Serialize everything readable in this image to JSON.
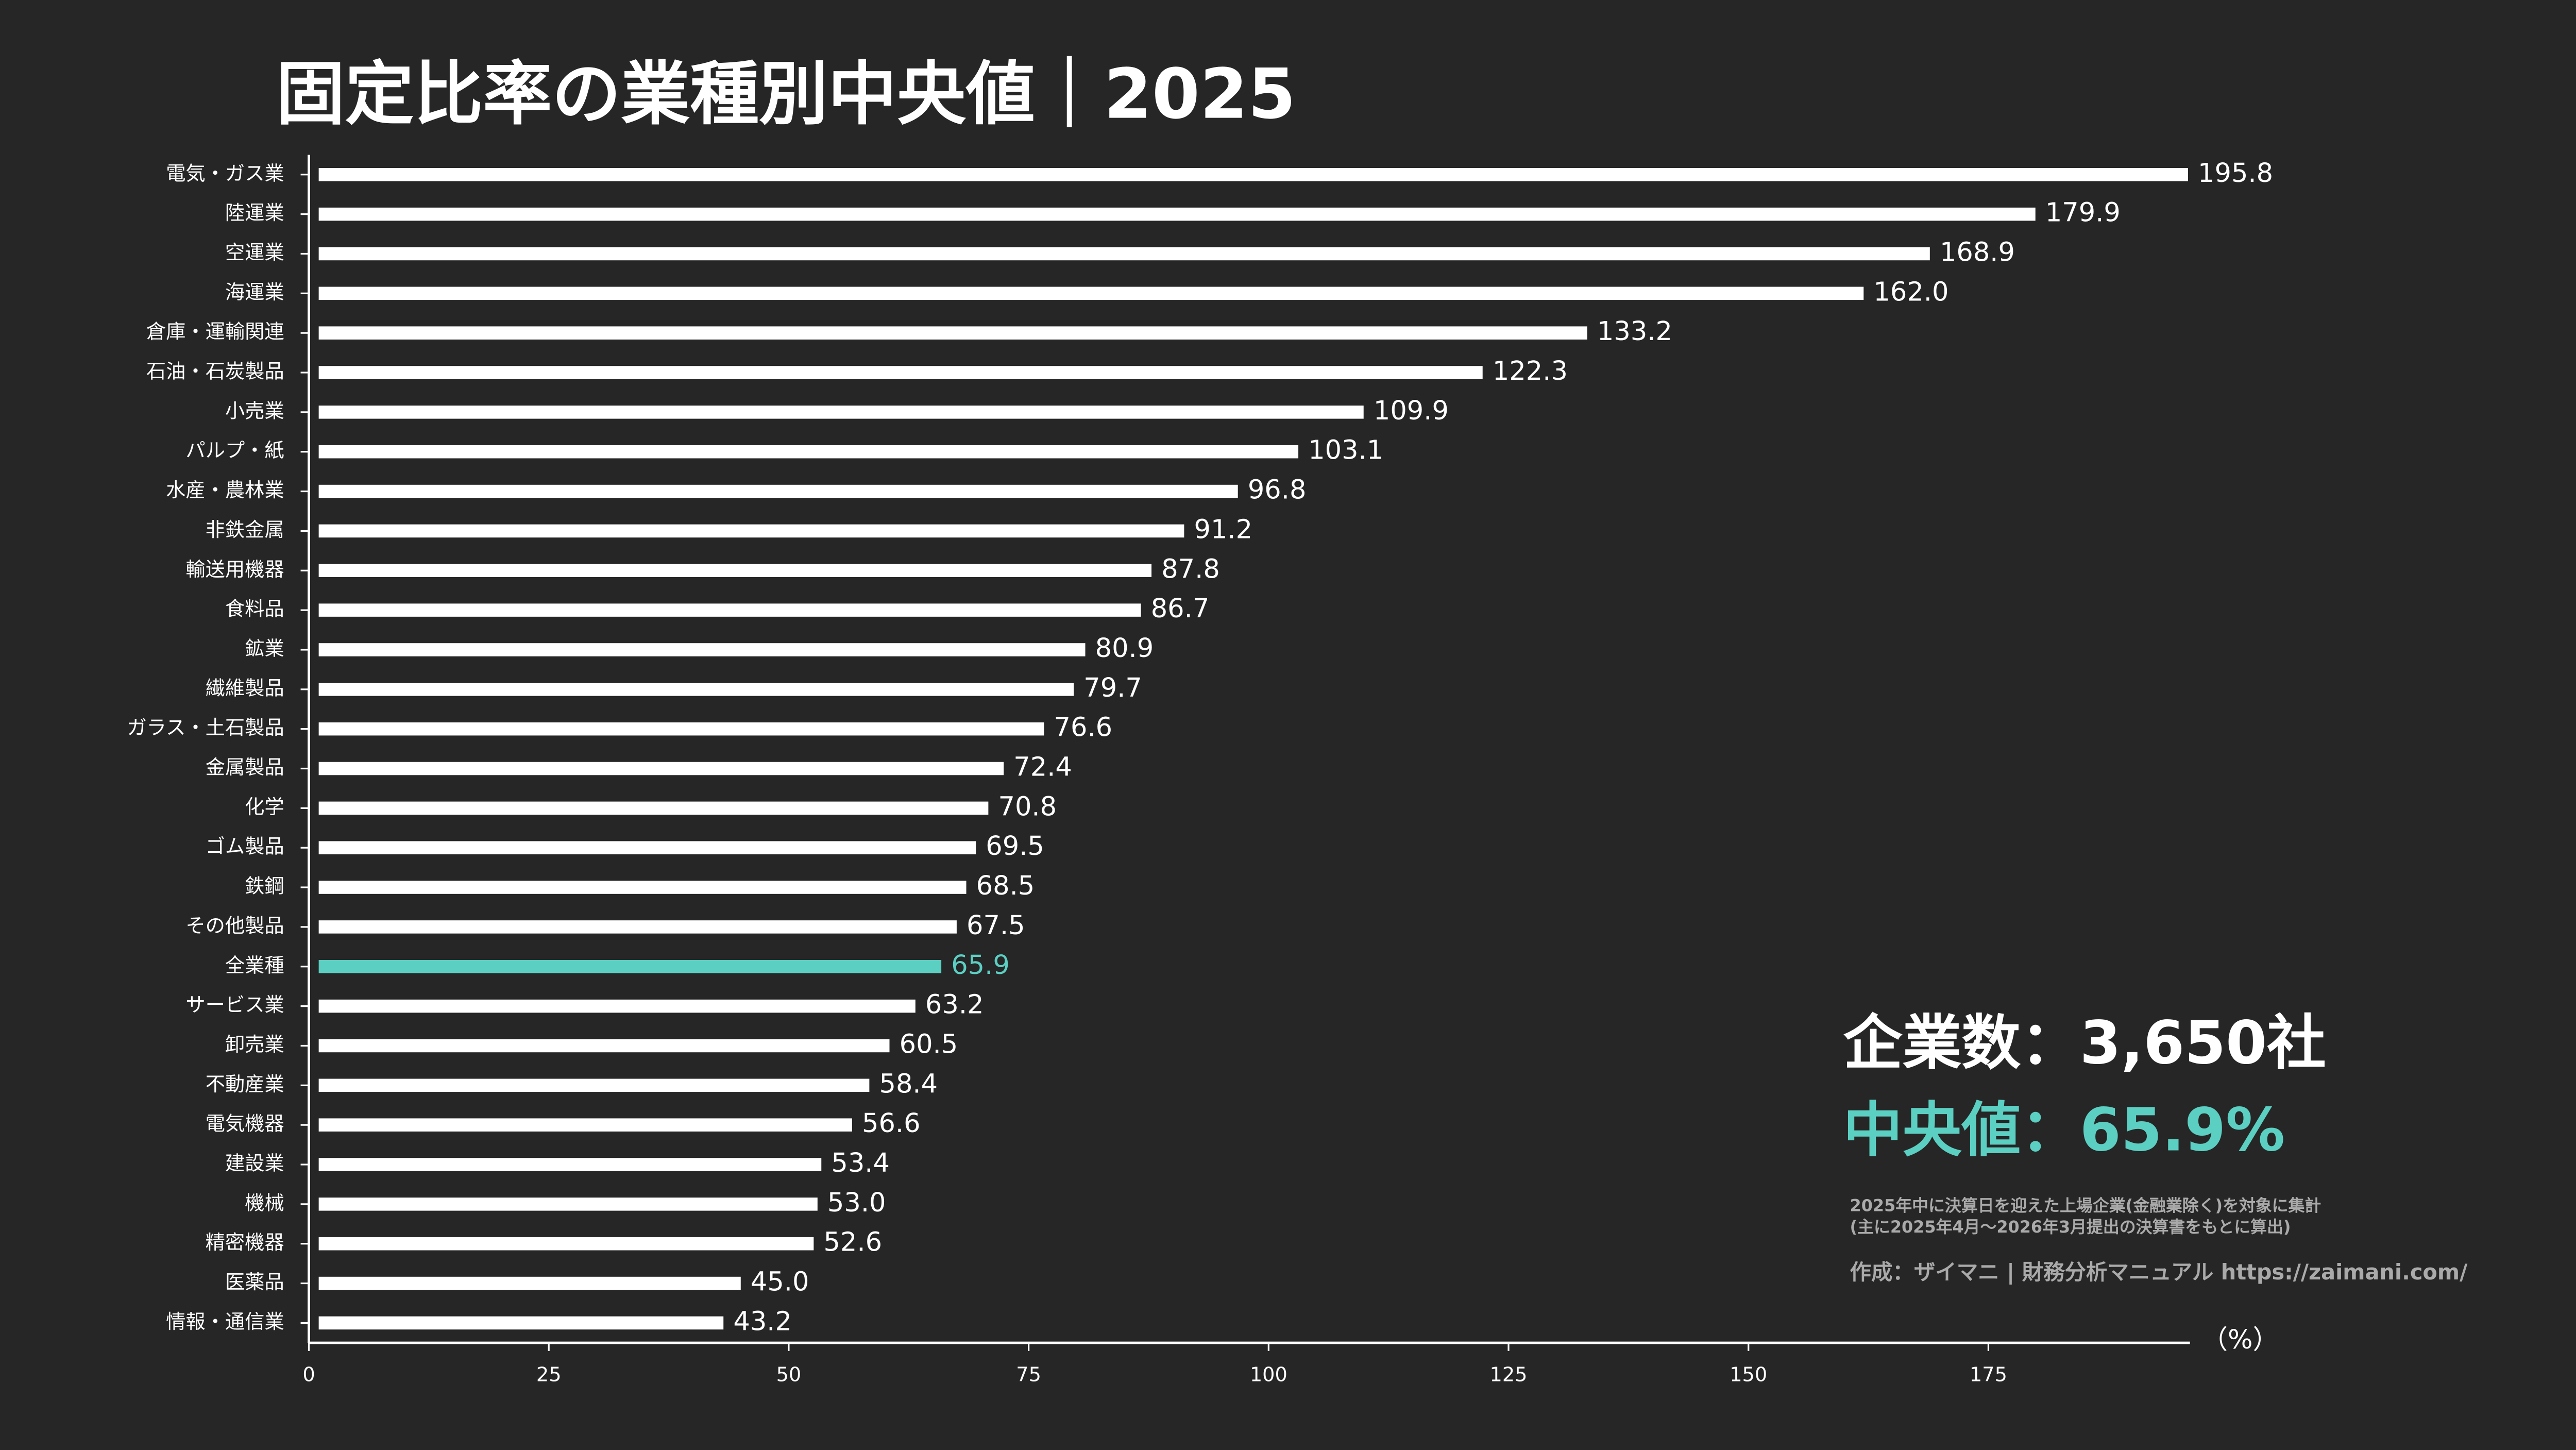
{
  "chart_data": {
    "type": "bar",
    "orientation": "horizontal",
    "title": "固定比率の業種別中央値｜2025",
    "categories": [
      "電気・ガス業",
      "陸運業",
      "空運業",
      "海運業",
      "倉庫・運輸関連",
      "石油・石炭製品",
      "小売業",
      "パルプ・紙",
      "水産・農林業",
      "非鉄金属",
      "輸送用機器",
      "食料品",
      "鉱業",
      "繊維製品",
      "ガラス・土石製品",
      "金属製品",
      "化学",
      "ゴム製品",
      "鉄鋼",
      "その他製品",
      "全業種",
      "サービス業",
      "卸売業",
      "不動産業",
      "電気機器",
      "建設業",
      "機械",
      "精密機器",
      "医薬品",
      "情報・通信業"
    ],
    "values": [
      195.8,
      179.9,
      168.9,
      162.0,
      133.2,
      122.3,
      109.9,
      103.1,
      96.8,
      91.2,
      87.8,
      86.7,
      80.9,
      79.7,
      76.6,
      72.4,
      70.8,
      69.5,
      68.5,
      67.5,
      65.9,
      63.2,
      60.5,
      58.4,
      56.6,
      53.4,
      53.0,
      52.6,
      45.0,
      43.2
    ],
    "value_labels": [
      "195.8",
      "179.9",
      "168.9",
      "162.0",
      "133.2",
      "122.3",
      "109.9",
      "103.1",
      "96.8",
      "91.2",
      "87.8",
      "86.7",
      "80.9",
      "79.7",
      "76.6",
      "72.4",
      "70.8",
      "69.5",
      "68.5",
      "67.5",
      "65.9",
      "63.2",
      "60.5",
      "58.4",
      "56.6",
      "53.4",
      "53.0",
      "52.6",
      "45.0",
      "43.2"
    ],
    "colors": [
      "#ffffff",
      "#ffffff",
      "#ffffff",
      "#ffffff",
      "#ffffff",
      "#ffffff",
      "#ffffff",
      "#ffffff",
      "#ffffff",
      "#ffffff",
      "#ffffff",
      "#ffffff",
      "#ffffff",
      "#ffffff",
      "#ffffff",
      "#ffffff",
      "#ffffff",
      "#ffffff",
      "#ffffff",
      "#ffffff",
      "#5ccfc3",
      "#ffffff",
      "#ffffff",
      "#ffffff",
      "#ffffff",
      "#ffffff",
      "#ffffff",
      "#ffffff",
      "#ffffff",
      "#ffffff"
    ],
    "xlim": [
      0,
      196
    ],
    "xticks": [
      0,
      25,
      50,
      75,
      100,
      125,
      150,
      175
    ],
    "xlabel": "（%）",
    "company_count": "企業数：3,650社",
    "median_label": "中央値：65.9%",
    "notes": [
      "2025年中に決算日を迎えた上場企業(金融業除く)を対象に集計",
      "(主に2025年4月〜2026年3月提出の決算書をもとに算出)"
    ],
    "credit": "作成：ザイマニ | 財務分析マニュアル https://zaimani.com/"
  }
}
